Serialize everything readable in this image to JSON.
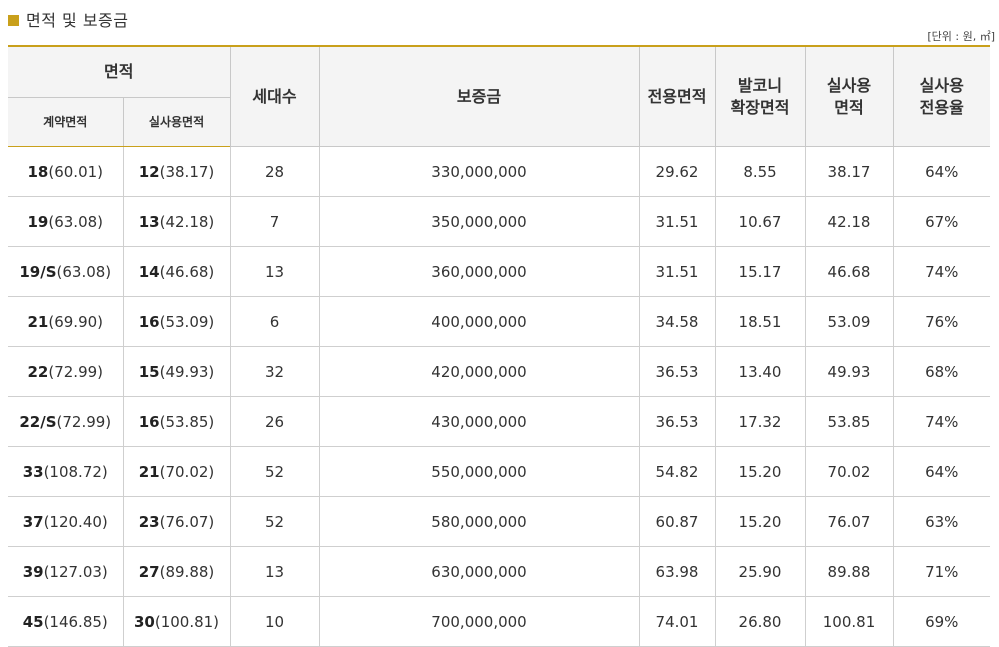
{
  "section_title": "면적 및 보증금",
  "unit_note": "[단위 : 원, ㎡]",
  "headers": {
    "area_group": "면적",
    "contract_area": "계약면적",
    "actual_area": "실사용면적",
    "households": "세대수",
    "deposit": "보증금",
    "exclusive_area": "전용면적",
    "balcony_line1": "발코니",
    "balcony_line2": "확장면적",
    "actual_use_line1": "실사용",
    "actual_use_line2": "면적",
    "ratio_line1": "실사용",
    "ratio_line2": "전용율"
  },
  "rows": [
    {
      "c_main": "18",
      "c_sub": "(60.01)",
      "a_main": "12",
      "a_sub": "(38.17)",
      "households": "28",
      "deposit": "330,000,000",
      "exclusive": "29.62",
      "balcony": "8.55",
      "actual": "38.17",
      "ratio": "64%"
    },
    {
      "c_main": "19",
      "c_sub": "(63.08)",
      "a_main": "13",
      "a_sub": "(42.18)",
      "households": "7",
      "deposit": "350,000,000",
      "exclusive": "31.51",
      "balcony": "10.67",
      "actual": "42.18",
      "ratio": "67%"
    },
    {
      "c_main": "19/S",
      "c_sub": "(63.08)",
      "a_main": "14",
      "a_sub": "(46.68)",
      "households": "13",
      "deposit": "360,000,000",
      "exclusive": "31.51",
      "balcony": "15.17",
      "actual": "46.68",
      "ratio": "74%"
    },
    {
      "c_main": "21",
      "c_sub": "(69.90)",
      "a_main": "16",
      "a_sub": "(53.09)",
      "households": "6",
      "deposit": "400,000,000",
      "exclusive": "34.58",
      "balcony": "18.51",
      "actual": "53.09",
      "ratio": "76%"
    },
    {
      "c_main": "22",
      "c_sub": "(72.99)",
      "a_main": "15",
      "a_sub": "(49.93)",
      "households": "32",
      "deposit": "420,000,000",
      "exclusive": "36.53",
      "balcony": "13.40",
      "actual": "49.93",
      "ratio": "68%"
    },
    {
      "c_main": "22/S",
      "c_sub": "(72.99)",
      "a_main": "16",
      "a_sub": "(53.85)",
      "households": "26",
      "deposit": "430,000,000",
      "exclusive": "36.53",
      "balcony": "17.32",
      "actual": "53.85",
      "ratio": "74%"
    },
    {
      "c_main": "33",
      "c_sub": "(108.72)",
      "a_main": "21",
      "a_sub": "(70.02)",
      "households": "52",
      "deposit": "550,000,000",
      "exclusive": "54.82",
      "balcony": "15.20",
      "actual": "70.02",
      "ratio": "64%"
    },
    {
      "c_main": "37",
      "c_sub": "(120.40)",
      "a_main": "23",
      "a_sub": "(76.07)",
      "households": "52",
      "deposit": "580,000,000",
      "exclusive": "60.87",
      "balcony": "15.20",
      "actual": "76.07",
      "ratio": "63%"
    },
    {
      "c_main": "39",
      "c_sub": "(127.03)",
      "a_main": "27",
      "a_sub": "(89.88)",
      "households": "13",
      "deposit": "630,000,000",
      "exclusive": "63.98",
      "balcony": "25.90",
      "actual": "89.88",
      "ratio": "71%"
    },
    {
      "c_main": "45",
      "c_sub": "(146.85)",
      "a_main": "30",
      "a_sub": "(100.81)",
      "households": "10",
      "deposit": "700,000,000",
      "exclusive": "74.01",
      "balcony": "26.80",
      "actual": "100.81",
      "ratio": "69%"
    }
  ]
}
